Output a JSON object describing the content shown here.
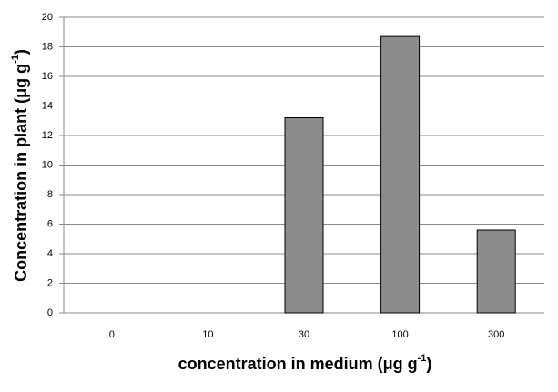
{
  "chart_data": {
    "type": "bar",
    "y_label": {
      "text": "Concentration in plant (μg g",
      "sup": "-1",
      "end": ")"
    },
    "x_label": {
      "text": "concentration in medium (μg g",
      "sup": "-1",
      "end": ")"
    },
    "categories": [
      "0",
      "10",
      "30",
      "100",
      "300"
    ],
    "values": [
      0,
      0,
      13.2,
      18.7,
      5.6
    ],
    "color": "#8c8c8c",
    "ylim": [
      0,
      20
    ],
    "yticks": [
      0,
      2,
      4,
      6,
      8,
      10,
      12,
      14,
      16,
      18,
      20
    ],
    "grid": true
  }
}
